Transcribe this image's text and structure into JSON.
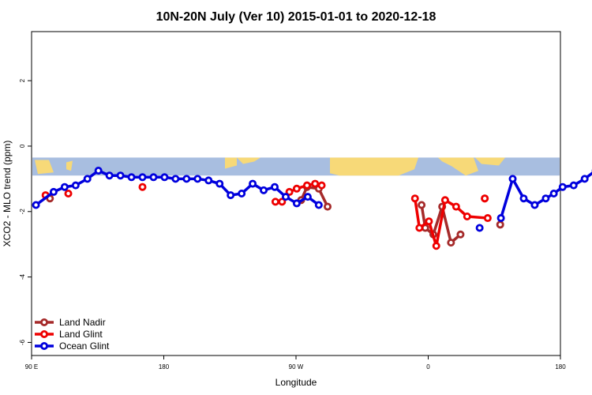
{
  "chart_data": {
    "type": "line",
    "title": "10N-20N July (Ver 10)   2015-01-01 to 2020-12-18",
    "xlabel": "Longitude",
    "ylabel": "XCO2 - MLO trend (ppm)",
    "xlim": [
      90,
      450
    ],
    "ylim": [
      -6.4,
      3.5
    ],
    "x_ticks": [
      {
        "value": 90,
        "label": "90 E"
      },
      {
        "value": 180,
        "label": "180"
      },
      {
        "value": 270,
        "label": "90 W"
      },
      {
        "value": 360,
        "label": "0"
      },
      {
        "value": 450,
        "label": "90 E"
      }
    ],
    "x_ticks_extra": [
      {
        "value": 450,
        "label": "180"
      }
    ],
    "y_ticks": [
      {
        "value": 2,
        "label": "2"
      },
      {
        "value": 0,
        "label": "0"
      },
      {
        "value": -2,
        "label": "-2"
      },
      {
        "value": -4,
        "label": "-4"
      },
      {
        "value": -6,
        "label": "-6"
      }
    ],
    "map_band": {
      "y_top": -0.35,
      "y_bottom": -0.9,
      "ocean_color": "#a8bee0",
      "land_color": "#f7d978"
    },
    "legend_position": "bottom-left",
    "series": [
      {
        "name": "Land Nadir",
        "color": "#a52a2a",
        "segments": [
          [
            [
              102.5,
              -1.6
            ]
          ],
          [
            [
              273.5,
              -1.65
            ],
            [
              277.5,
              -1.25
            ],
            [
              285.5,
              -1.3
            ],
            [
              291.5,
              -1.85
            ]
          ],
          [
            [
              355.5,
              -1.8
            ],
            [
              358,
              -2.5
            ],
            [
              363.5,
              -2.7
            ],
            [
              369.5,
              -1.85
            ],
            [
              375.5,
              -2.95
            ],
            [
              382,
              -2.7
            ]
          ],
          [
            [
              409,
              -2.4
            ]
          ],
          [
            [
              481.5,
              -1.6
            ]
          ]
        ]
      },
      {
        "name": "Land Glint",
        "color": "#ee0000",
        "segments": [
          [
            [
              99.5,
              -1.5
            ]
          ],
          [
            [
              115,
              -1.45
            ]
          ],
          [
            [
              165.5,
              -1.25
            ]
          ],
          [
            [
              256,
              -1.7
            ],
            [
              260.5,
              -1.7
            ],
            [
              265.5,
              -1.4
            ],
            [
              270.5,
              -1.3
            ],
            [
              277.5,
              -1.2
            ],
            [
              283,
              -1.15
            ],
            [
              287.5,
              -1.2
            ]
          ],
          [
            [
              351,
              -1.6
            ],
            [
              354,
              -2.5
            ],
            [
              360.5,
              -2.3
            ],
            [
              365.5,
              -3.05
            ],
            [
              371.5,
              -1.65
            ],
            [
              379,
              -1.85
            ],
            [
              386.5,
              -2.15
            ],
            [
              400.5,
              -2.2
            ]
          ],
          [
            [
              398.5,
              -1.6
            ]
          ],
          [
            [
              398.5,
              -1.6
            ]
          ],
          [
            [
              487,
              -1.45
            ]
          ]
        ]
      },
      {
        "name": "Ocean Glint",
        "color": "#0000dd",
        "segments": [
          [
            [
              93,
              -1.8
            ],
            [
              105,
              -1.4
            ],
            [
              112.5,
              -1.25
            ],
            [
              120,
              -1.2
            ],
            [
              128,
              -1.0
            ],
            [
              135.5,
              -0.75
            ],
            [
              143,
              -0.9
            ],
            [
              150.5,
              -0.9
            ],
            [
              158,
              -0.95
            ],
            [
              165.5,
              -0.95
            ],
            [
              173,
              -0.95
            ],
            [
              180.5,
              -0.95
            ],
            [
              188,
              -1.0
            ],
            [
              195.5,
              -1.0
            ],
            [
              203,
              -1.0
            ],
            [
              210.5,
              -1.05
            ],
            [
              218,
              -1.15
            ],
            [
              225.5,
              -1.5
            ],
            [
              233,
              -1.45
            ],
            [
              240.5,
              -1.15
            ],
            [
              248,
              -1.35
            ],
            [
              255.5,
              -1.25
            ],
            [
              263,
              -1.55
            ],
            [
              270.5,
              -1.75
            ],
            [
              278,
              -1.55
            ],
            [
              285.5,
              -1.8
            ]
          ],
          [
            [
              395,
              -2.5
            ]
          ],
          [
            [
              409.5,
              -2.2
            ],
            [
              417.5,
              -1.0
            ],
            [
              425,
              -1.6
            ],
            [
              432.5,
              -1.8
            ],
            [
              440,
              -1.6
            ],
            [
              445.5,
              -1.45
            ],
            [
              451.5,
              -1.25
            ],
            [
              459,
              -1.2
            ],
            [
              466.5,
              -1.0
            ],
            [
              474,
              -0.75
            ],
            [
              481.5,
              -0.9
            ],
            [
              489,
              -0.9
            ],
            [
              496.5,
              -0.95
            ]
          ]
        ]
      }
    ]
  }
}
